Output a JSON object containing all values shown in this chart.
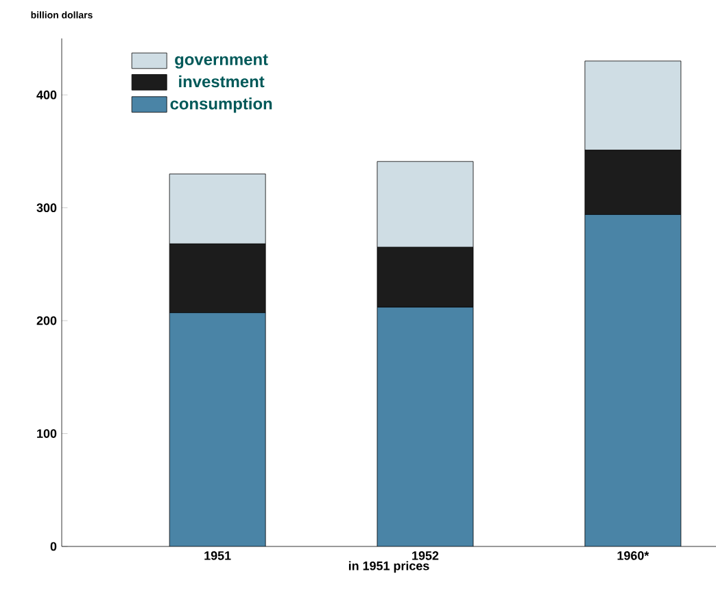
{
  "chart_data": {
    "type": "bar",
    "stacked": true,
    "ylabel": "billion dollars",
    "xlabel": "in 1951 prices",
    "categories": [
      "1951",
      "1952",
      "1960*"
    ],
    "series": [
      {
        "name": "consumption",
        "color": "#4a84a6",
        "values": [
          207,
          212,
          294
        ]
      },
      {
        "name": "investment",
        "color": "#1c1c1c",
        "values": [
          61,
          53,
          57
        ]
      },
      {
        "name": "government",
        "color": "#cfdde4",
        "values": [
          62,
          76,
          79
        ]
      }
    ],
    "ylim": [
      0,
      450
    ],
    "yticks": [
      0,
      100,
      200,
      300,
      400
    ],
    "legend": "top left",
    "grid": false
  }
}
